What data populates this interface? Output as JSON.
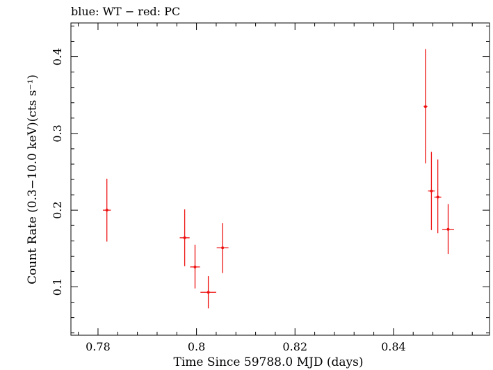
{
  "chart_data": {
    "type": "scatter",
    "title": "blue: WT − red: PC",
    "xlabel": "Time Since 59788.0 MJD (days)",
    "ylabel": "Count Rate (0.3−10.0 keV)(cts s⁻¹)",
    "xlim": [
      0.7745,
      0.8595
    ],
    "ylim": [
      0.037,
      0.444
    ],
    "xticks": [
      0.78,
      0.8,
      0.82,
      0.84
    ],
    "xtick_labels": [
      "0.78",
      "0.8",
      "0.82",
      "0.84"
    ],
    "yticks": [
      0.1,
      0.2,
      0.3,
      0.4
    ],
    "ytick_labels": [
      "0.1",
      "0.2",
      "0.3",
      "0.4"
    ],
    "grid": false,
    "series": [
      {
        "color": "#ee1111",
        "points": [
          {
            "x": 0.7818,
            "y": 0.2,
            "xerr": 0.0008,
            "ylo": 0.159,
            "yhi": 0.241
          },
          {
            "x": 0.7976,
            "y": 0.164,
            "xerr": 0.001,
            "ylo": 0.127,
            "yhi": 0.201
          },
          {
            "x": 0.7997,
            "y": 0.126,
            "xerr": 0.001,
            "ylo": 0.098,
            "yhi": 0.155
          },
          {
            "x": 0.8024,
            "y": 0.093,
            "xerr": 0.0016,
            "ylo": 0.072,
            "yhi": 0.114
          },
          {
            "x": 0.8053,
            "y": 0.151,
            "xerr": 0.0012,
            "ylo": 0.118,
            "yhi": 0.183
          },
          {
            "x": 0.8465,
            "y": 0.335,
            "xerr": 0.0004,
            "ylo": 0.261,
            "yhi": 0.41
          },
          {
            "x": 0.8477,
            "y": 0.225,
            "xerr": 0.0007,
            "ylo": 0.174,
            "yhi": 0.276
          },
          {
            "x": 0.849,
            "y": 0.217,
            "xerr": 0.0007,
            "ylo": 0.17,
            "yhi": 0.266
          },
          {
            "x": 0.8511,
            "y": 0.175,
            "xerr": 0.0012,
            "ylo": 0.143,
            "yhi": 0.208
          }
        ]
      }
    ]
  }
}
